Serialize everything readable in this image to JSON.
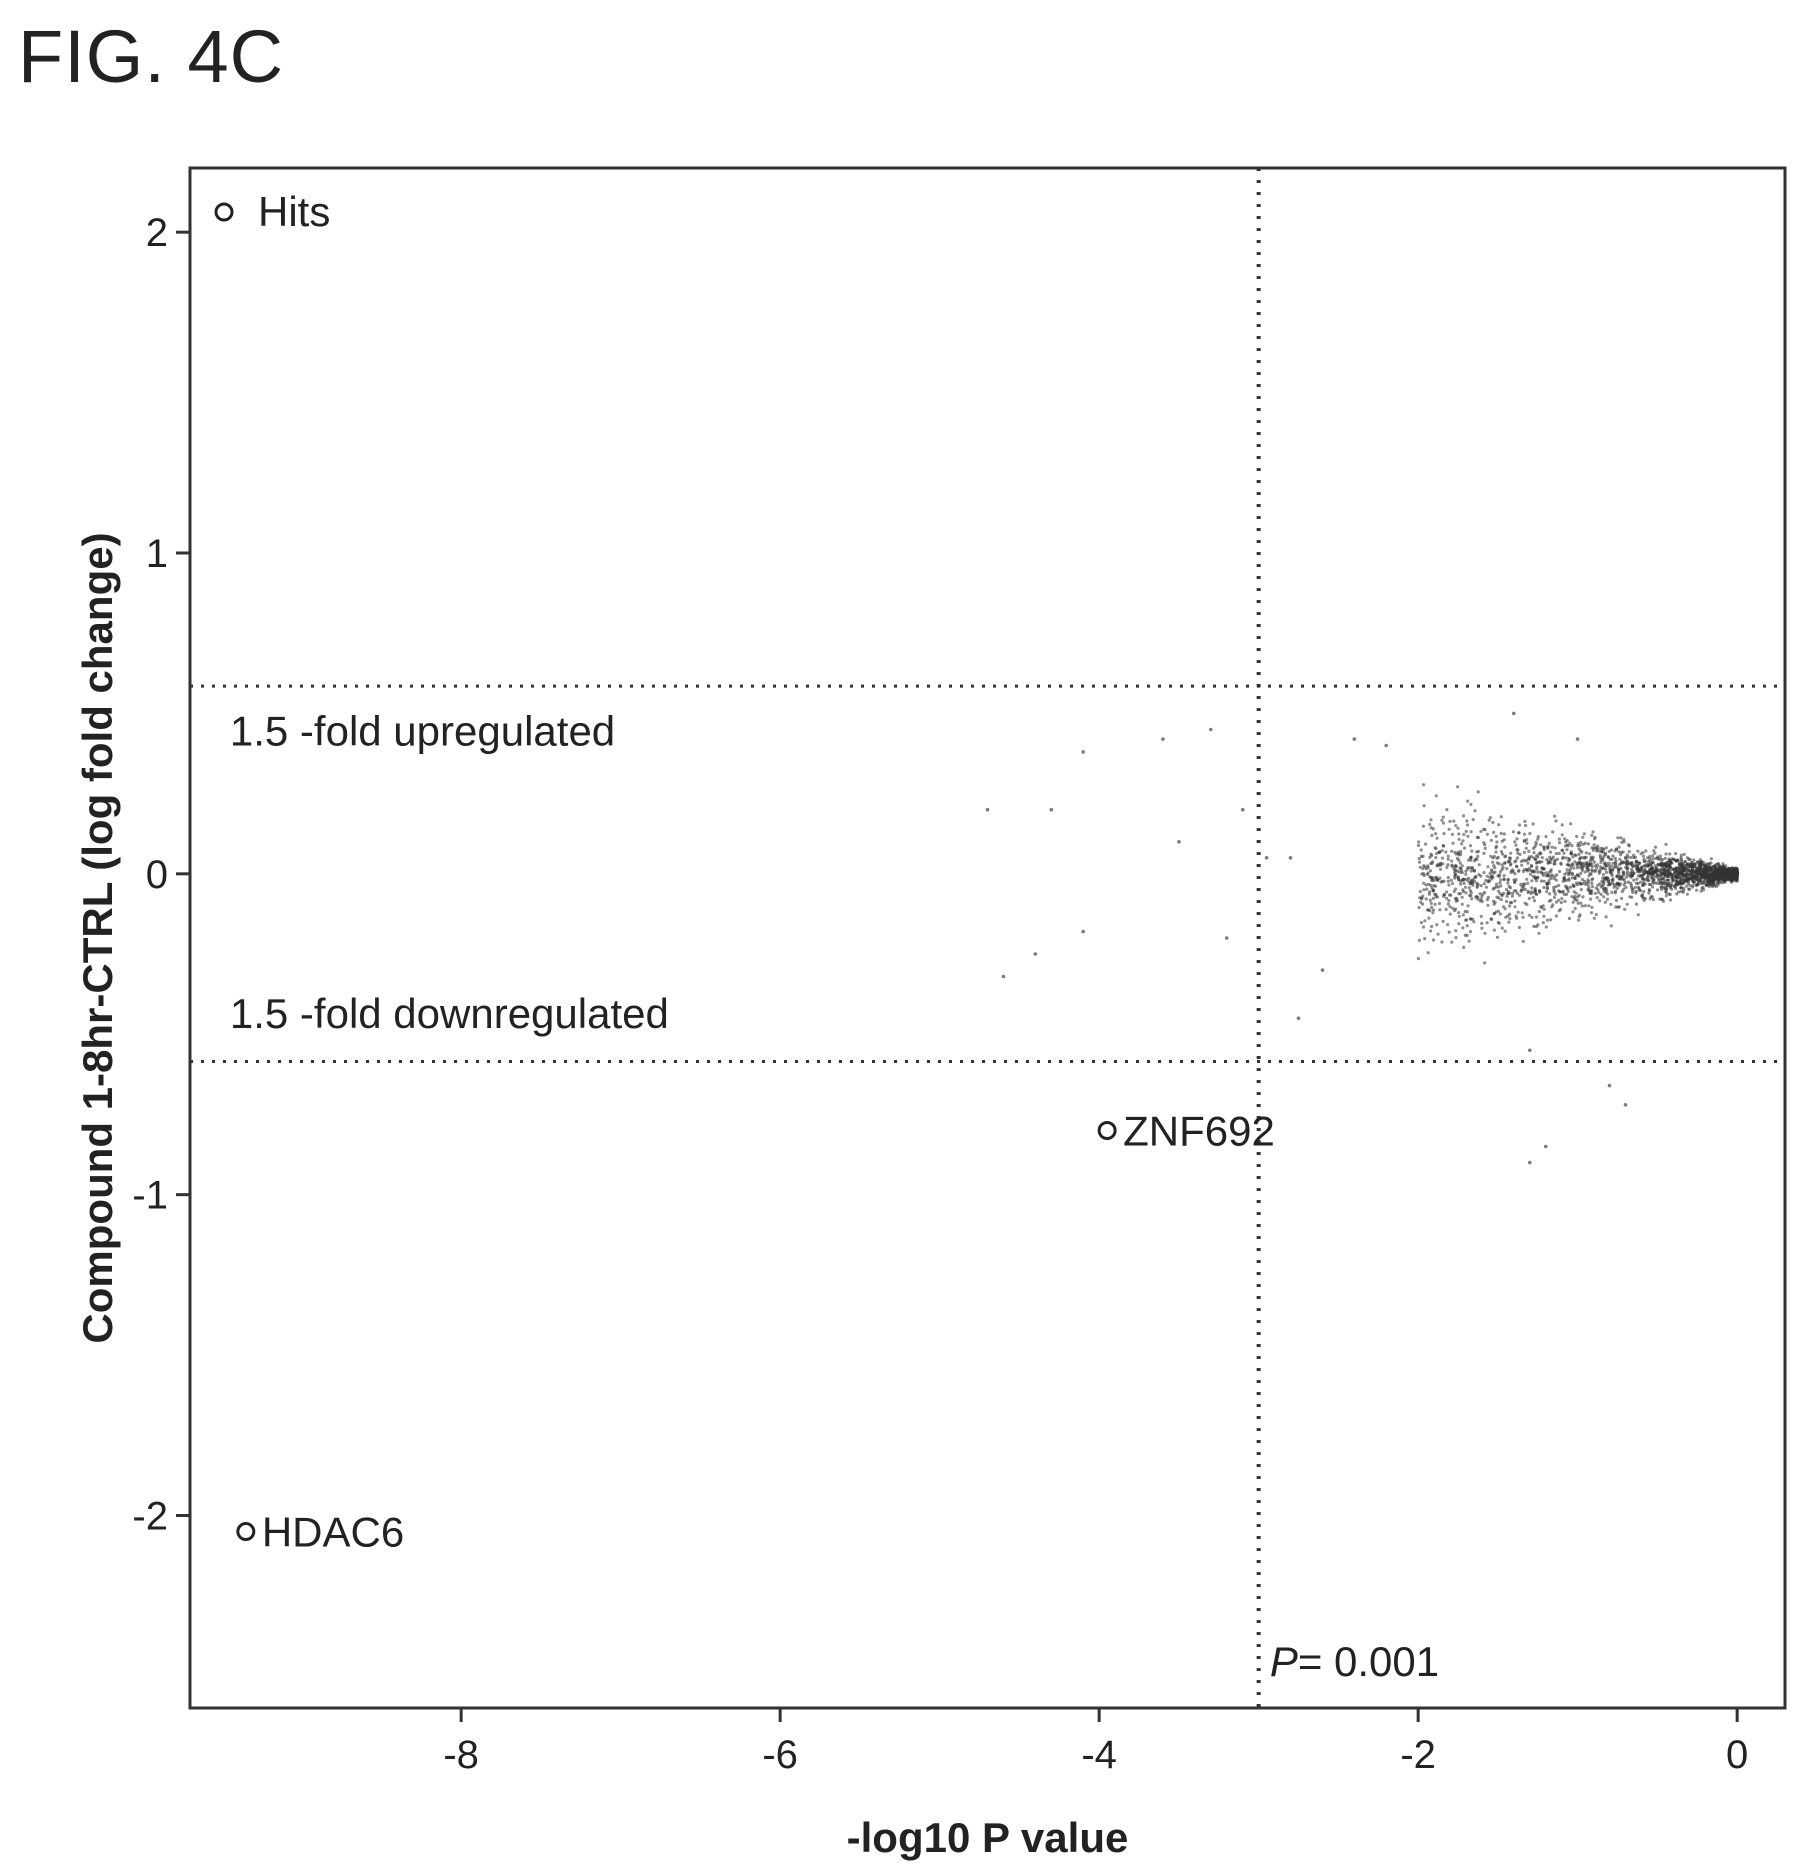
{
  "figure_label": "FIG. 4C",
  "chart_data": {
    "type": "scatter",
    "xlabel": "-log10 P value",
    "ylabel": "Compound 1-8hr-CTRL (log fold change)",
    "xlim": [
      -9.7,
      0.3
    ],
    "ylim": [
      -2.6,
      2.2
    ],
    "x_ticks": [
      -8,
      -6,
      -4,
      -2,
      0
    ],
    "x_tick_labels": [
      "-8",
      "-6",
      "-4",
      "-2",
      "0"
    ],
    "y_ticks": [
      2,
      1,
      0,
      -1,
      -2
    ],
    "y_tick_labels": [
      "2",
      "1",
      "0",
      "-1",
      "-2"
    ],
    "threshold_lines": {
      "horizontal": [
        0.585,
        -0.585
      ],
      "vertical": [
        -3.0
      ]
    },
    "annotations": [
      {
        "text": "1.5 -fold upregulated",
        "x": -9.45,
        "y": 0.4
      },
      {
        "text": "1.5 -fold downregulated",
        "x": -9.45,
        "y": -0.48
      },
      {
        "text": "P= 0.001",
        "x": -2.93,
        "y": -2.5
      }
    ],
    "legend": {
      "label": "Hits",
      "position": "top-left"
    },
    "hits": [
      {
        "label": "ZNF692",
        "x": -3.95,
        "y": -0.8
      },
      {
        "label": "HDAC6",
        "x": -9.35,
        "y": -2.05
      }
    ],
    "grid": false
  }
}
